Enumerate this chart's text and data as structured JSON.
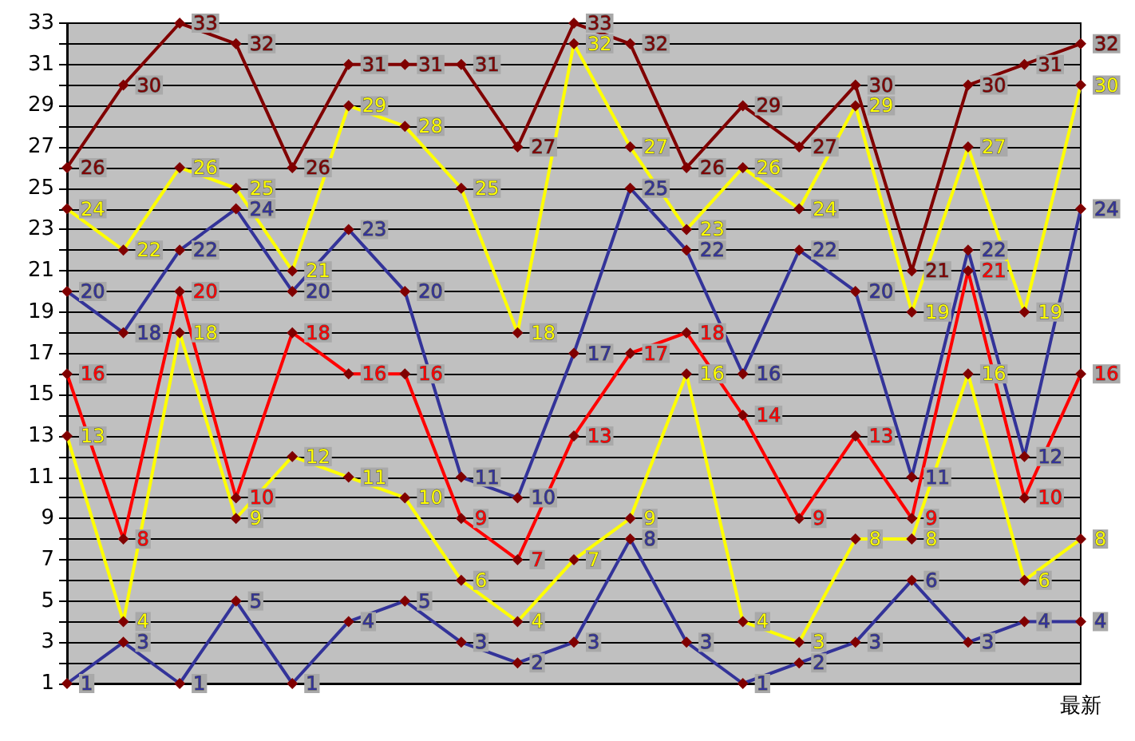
{
  "chart_data": {
    "type": "line",
    "categories": [
      null,
      null,
      null,
      null,
      null,
      null,
      null,
      null,
      null,
      null,
      null,
      null,
      null,
      null,
      null,
      null,
      null,
      null,
      "最新"
    ],
    "series": [
      {
        "color": "#800000",
        "values": [
          26,
          30,
          33,
          32,
          26,
          31,
          31,
          31,
          27,
          33,
          32,
          26,
          29,
          27,
          30,
          21,
          30,
          31,
          32
        ]
      },
      {
        "color": "#ffff00",
        "values": [
          24,
          22,
          26,
          25,
          21,
          29,
          28,
          25,
          18,
          32,
          27,
          23,
          26,
          24,
          29,
          19,
          27,
          19,
          30
        ]
      },
      {
        "color": "#333399",
        "values": [
          20,
          18,
          22,
          24,
          20,
          23,
          20,
          11,
          10,
          17,
          25,
          22,
          16,
          22,
          20,
          11,
          22,
          12,
          24
        ]
      },
      {
        "color": "#ff0000",
        "values": [
          16,
          8,
          20,
          10,
          18,
          16,
          16,
          9,
          7,
          13,
          17,
          18,
          14,
          9,
          13,
          9,
          21,
          10,
          16
        ]
      },
      {
        "color": "#ffff00",
        "values": [
          13,
          4,
          18,
          9,
          12,
          11,
          10,
          6,
          4,
          7,
          9,
          16,
          4,
          3,
          8,
          8,
          16,
          6,
          8
        ]
      },
      {
        "color": "#333399",
        "values": [
          1,
          3,
          1,
          5,
          1,
          4,
          5,
          3,
          2,
          3,
          8,
          3,
          1,
          2,
          3,
          6,
          3,
          4,
          4
        ]
      }
    ],
    "ylim": [
      1,
      33
    ],
    "yticks": [
      1,
      {
        "value": 2,
        "label": null
      },
      3,
      {
        "value": 4,
        "label": null
      },
      5,
      {
        "value": 6,
        "label": null
      },
      7,
      {
        "value": 8,
        "label": null
      },
      9,
      {
        "value": 10,
        "label": null
      },
      11,
      {
        "value": 12,
        "label": null
      },
      13,
      {
        "value": 14,
        "label": null
      },
      15,
      {
        "value": 16,
        "label": null
      },
      17,
      {
        "value": 18,
        "label": null
      },
      19,
      {
        "value": 20,
        "label": null
      },
      21,
      {
        "value": 22,
        "label": null
      },
      23,
      {
        "value": 24,
        "label": null
      },
      25,
      {
        "value": 26,
        "label": null
      },
      27,
      {
        "value": 28,
        "label": null
      },
      29,
      {
        "value": 30,
        "label": null
      },
      31,
      {
        "value": 32,
        "label": null
      },
      33
    ],
    "grid": "y",
    "marker": "diamond",
    "line_style": "solid",
    "data_labels": true
  }
}
